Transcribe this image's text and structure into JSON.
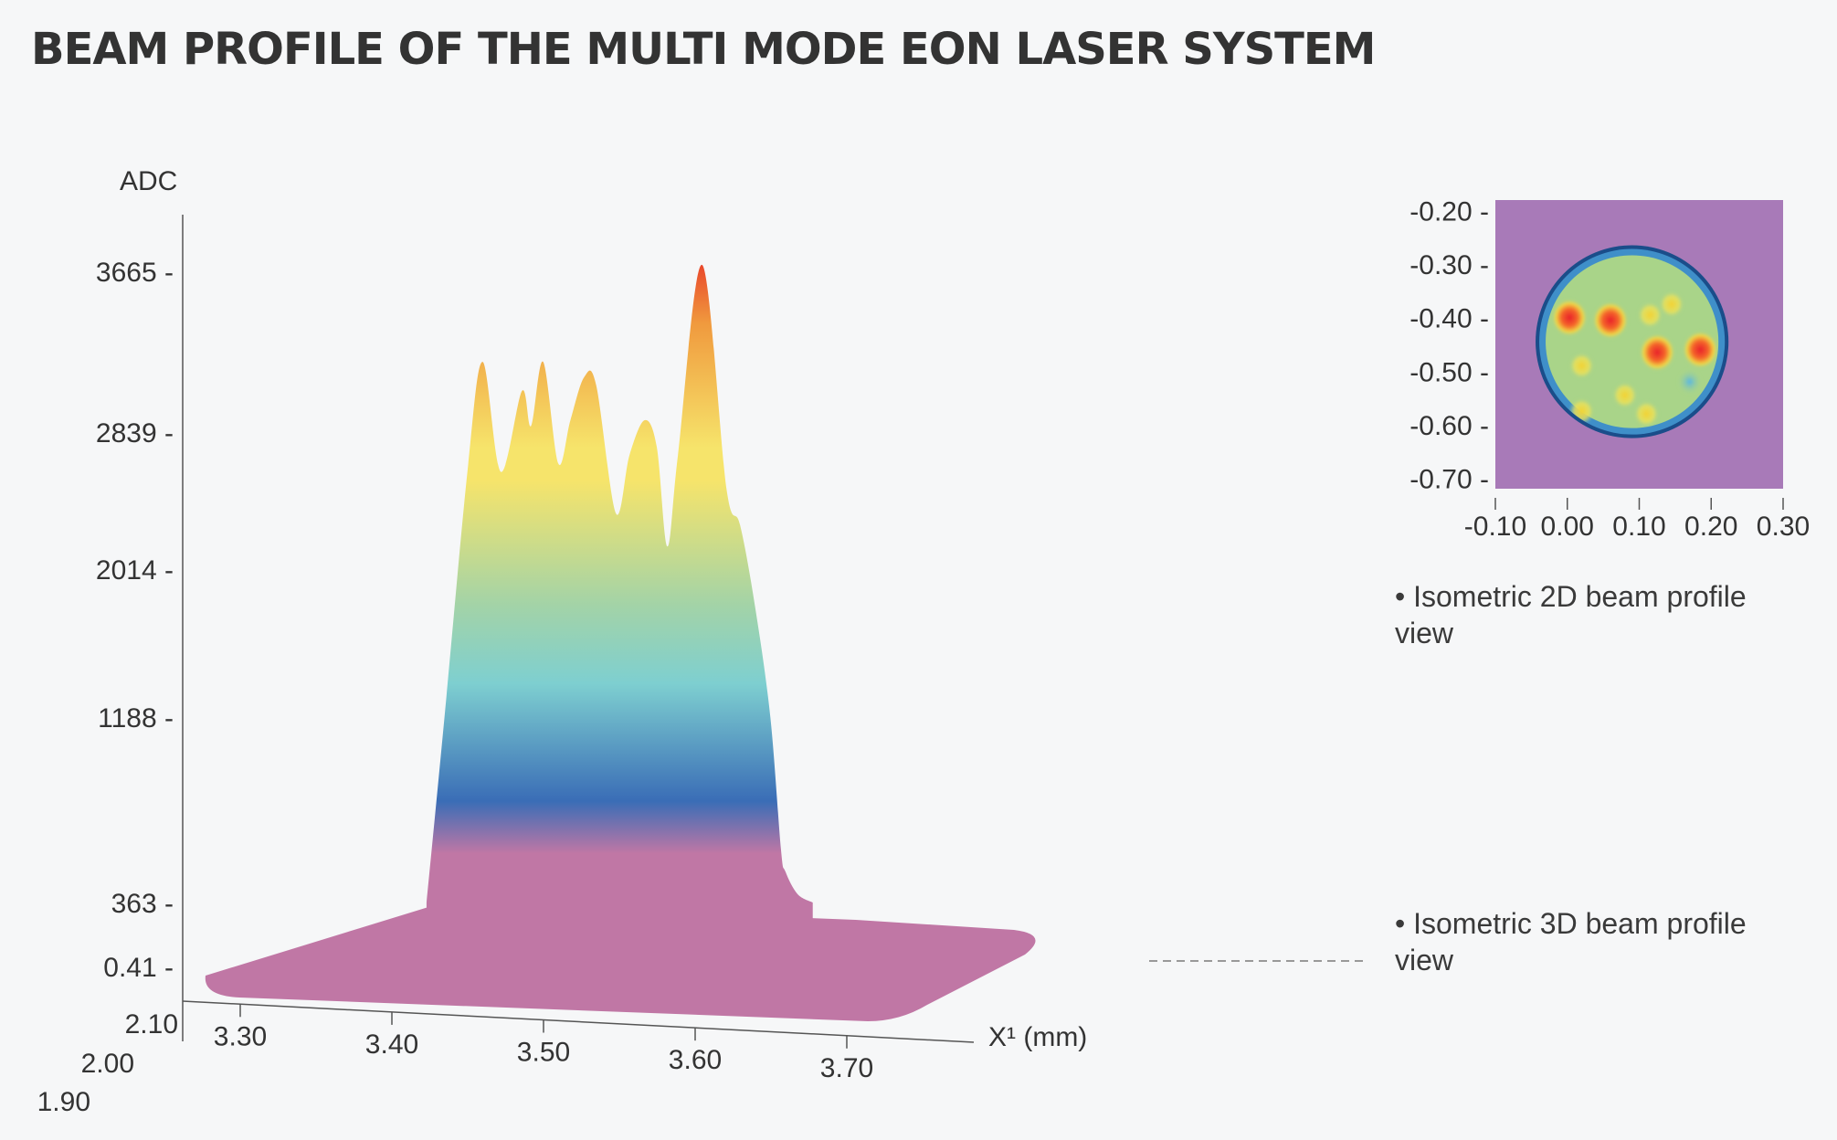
{
  "title": "BEAM PROFILE OF THE MULTI MODE EON LASER SYSTEM",
  "captions": {
    "iso2d": "• Isometric 2D beam profile view",
    "iso3d": "• Isometric 3D beam profile view"
  },
  "chart_data": [
    {
      "type": "area",
      "view": "isometric-3d",
      "ylabel": "ADC",
      "xlabel": "X¹ (mm)",
      "y_ticks": [
        0.41,
        363,
        1188,
        2014,
        2839,
        3665
      ],
      "x_ticks": [
        "3.30",
        "3.40",
        "3.50",
        "3.60",
        "3.70"
      ],
      "depth_ticks": [
        "2.10",
        "2.00",
        "1.90"
      ],
      "ylim": [
        0,
        4000
      ],
      "profile": {
        "x": [
          3.423,
          3.435,
          3.45,
          3.46,
          3.472,
          3.486,
          3.492,
          3.5,
          3.51,
          3.518,
          3.527,
          3.535,
          3.548,
          3.557,
          3.567,
          3.575,
          3.582,
          3.589,
          3.605,
          3.621,
          3.63,
          3.64,
          3.65,
          3.657,
          3.66,
          3.668,
          3.678
        ],
        "y": [
          363,
          1200,
          2600,
          3200,
          2600,
          3050,
          2870,
          3200,
          2650,
          2900,
          3120,
          3080,
          2350,
          2700,
          2900,
          2750,
          2150,
          2700,
          3700,
          2500,
          2280,
          1800,
          1188,
          600,
          500,
          400,
          363
        ]
      },
      "colorscale": [
        "#c077a5",
        "#3a6db6",
        "#7ecfd0",
        "#a3d3a7",
        "#f6e46b",
        "#f09a3e",
        "#e9482b"
      ]
    },
    {
      "type": "heatmap",
      "view": "isometric-2d",
      "x_ticks": [
        "-0.10",
        "0.00",
        "0.10",
        "0.20",
        "0.30"
      ],
      "y_ticks": [
        "-0.20",
        "-0.30",
        "-0.40",
        "-0.50",
        "-0.60",
        "-0.70"
      ],
      "xlim": [
        -0.1,
        0.3
      ],
      "ylim": [
        -0.72,
        -0.18
      ],
      "background_color": "#a87ab8",
      "beam": {
        "cx": 0.09,
        "cy": -0.445,
        "r": 0.129
      },
      "hotspots": [
        {
          "x": 0.003,
          "y": -0.4,
          "level": "hot"
        },
        {
          "x": 0.06,
          "y": -0.405,
          "level": "hot"
        },
        {
          "x": 0.125,
          "y": -0.465,
          "level": "hot"
        },
        {
          "x": 0.185,
          "y": -0.46,
          "level": "hot"
        },
        {
          "x": 0.115,
          "y": -0.395,
          "level": "warm"
        },
        {
          "x": 0.02,
          "y": -0.49,
          "level": "warm"
        },
        {
          "x": 0.145,
          "y": -0.375,
          "level": "warm"
        },
        {
          "x": 0.08,
          "y": -0.545,
          "level": "warm"
        },
        {
          "x": 0.02,
          "y": -0.575,
          "level": "warm"
        },
        {
          "x": 0.11,
          "y": -0.58,
          "level": "warm"
        },
        {
          "x": 0.17,
          "y": -0.52,
          "level": "cool"
        }
      ]
    }
  ]
}
